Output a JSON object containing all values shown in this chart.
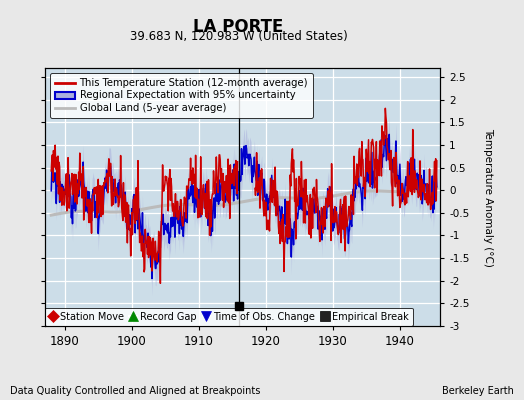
{
  "title": "LA PORTE",
  "subtitle": "39.683 N, 120.983 W (United States)",
  "ylabel": "Temperature Anomaly (°C)",
  "xlabel_left": "Data Quality Controlled and Aligned at Breakpoints",
  "xlabel_right": "Berkeley Earth",
  "ylim": [
    -3,
    2.7
  ],
  "xlim": [
    1887,
    1946
  ],
  "yticks": [
    -3,
    -2.5,
    -2,
    -1.5,
    -1,
    -0.5,
    0,
    0.5,
    1,
    1.5,
    2,
    2.5
  ],
  "xticks": [
    1890,
    1900,
    1910,
    1920,
    1930,
    1940
  ],
  "bg_color": "#e8e8e8",
  "plot_bg_color": "#ccdde8",
  "grid_color": "white",
  "station_line_color": "#cc0000",
  "regional_line_color": "#0000cc",
  "regional_fill_color": "#aab0dd",
  "global_line_color": "#bbbbbb",
  "empirical_break_x": 1916.0,
  "vertical_line_x": 1916.0,
  "legend_labels": [
    "This Temperature Station (12-month average)",
    "Regional Expectation with 95% uncertainty",
    "Global Land (5-year average)"
  ],
  "legend2_labels": [
    "Station Move",
    "Record Gap",
    "Time of Obs. Change",
    "Empirical Break"
  ],
  "legend2_colors": [
    "#cc0000",
    "#008800",
    "#0000cc",
    "#222222"
  ],
  "legend2_markers": [
    "D",
    "^",
    "v",
    "s"
  ]
}
